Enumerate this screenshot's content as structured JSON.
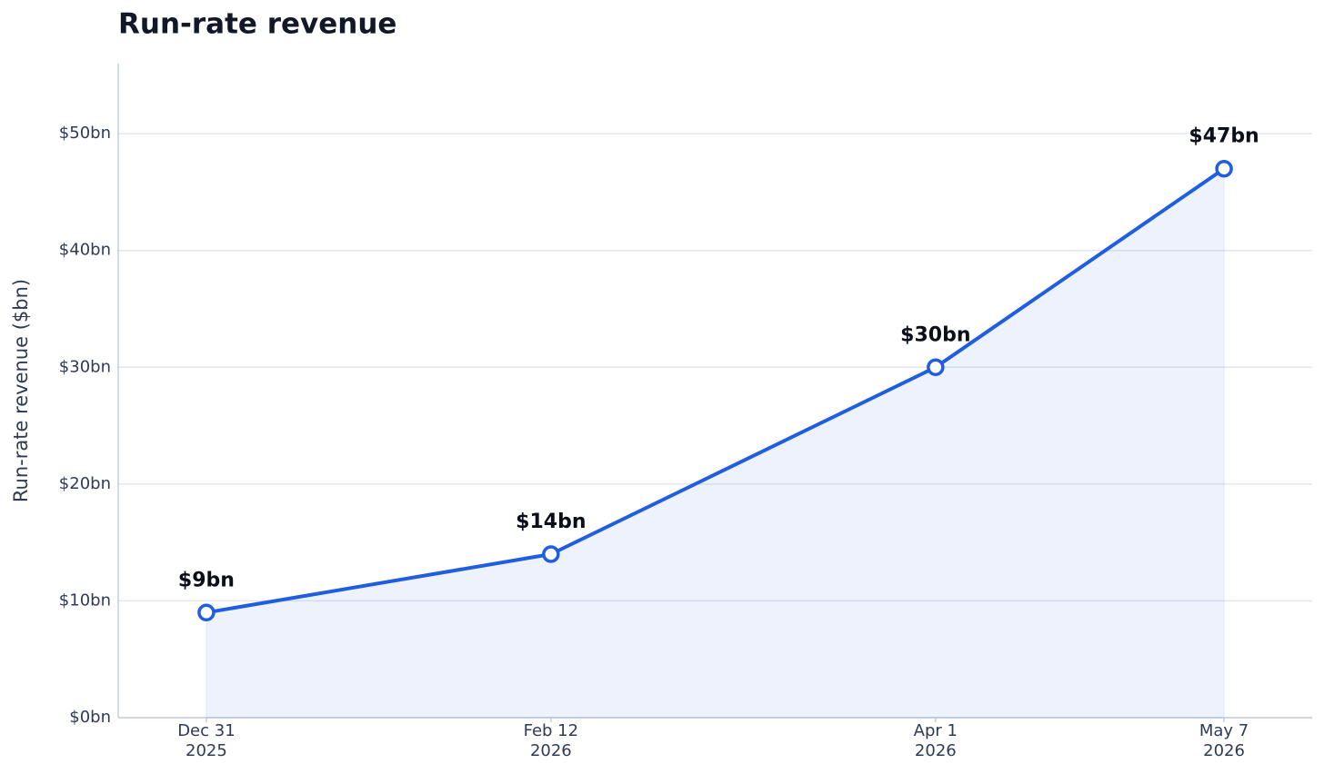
{
  "chart_data": {
    "type": "line",
    "title": "Run-rate revenue",
    "ylabel": "Run-rate revenue ($bn)",
    "x": [
      "2025-12-31",
      "2026-02-12",
      "2026-04-01",
      "2026-05-07"
    ],
    "series": [
      {
        "name": "Run-rate revenue",
        "color": "#1f5ee0",
        "values": [
          9,
          14,
          30,
          47
        ],
        "value_labels": [
          "$9bn",
          "$14bn",
          "$30bn",
          "$47bn"
        ]
      }
    ],
    "xlim": [
      "2025-12-20",
      "2026-05-18"
    ],
    "xticks": [
      {
        "value": "2025-12-31",
        "label": "Dec 31\n2025"
      },
      {
        "value": "2026-02-12",
        "label": "Feb 12\n2026"
      },
      {
        "value": "2026-04-01",
        "label": "Apr 1\n2026"
      },
      {
        "value": "2026-05-07",
        "label": "May 7\n2026"
      }
    ],
    "ylim": [
      0,
      56
    ],
    "yticks": [
      {
        "value": 0,
        "label": "$0bn"
      },
      {
        "value": 10,
        "label": "$10bn"
      },
      {
        "value": 20,
        "label": "$20bn"
      },
      {
        "value": 30,
        "label": "$30bn"
      },
      {
        "value": 40,
        "label": "$40bn"
      },
      {
        "value": 50,
        "label": "$50bn"
      }
    ],
    "grid": true,
    "area": true
  }
}
